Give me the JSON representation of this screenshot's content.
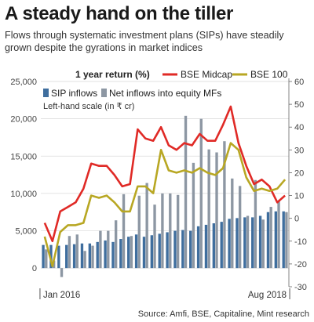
{
  "header": {
    "title": "A steady hand on the tiller",
    "subtitle": "Flows through systematic investment plans (SIPs) have steadily grown despite the gyrations in market indices"
  },
  "footer": {
    "source": "Source: Amfi, BSE, Capitaline, Mint research"
  },
  "chart_data": {
    "type": "bar",
    "title": "",
    "left_axis": {
      "label": "Left-hand scale (in ₹ cr)",
      "ylim": [
        -2500,
        25000
      ],
      "ticks": [
        0,
        5000,
        10000,
        15000,
        20000,
        25000
      ],
      "tick_labels": [
        "0",
        "5,000",
        "10,000",
        "15,000",
        "20,000",
        "25,000"
      ]
    },
    "right_axis": {
      "label": "1 year return (%)",
      "ylim": [
        -30,
        60
      ],
      "ticks": [
        -30,
        -20,
        -10,
        0,
        10,
        20,
        30,
        40,
        50,
        60
      ],
      "tick_labels": [
        "-30",
        "-20",
        "-10",
        "0",
        "10",
        "20",
        "30",
        "40",
        "50",
        "60"
      ]
    },
    "x_labels": {
      "start": "Jan 2016",
      "end": "Aug 2018"
    },
    "months": 32,
    "series": [
      {
        "name": "SIP inflows",
        "type": "bar",
        "axis": "left",
        "color": "#3f6e9e",
        "values": [
          3100,
          3100,
          3000,
          3100,
          3200,
          3300,
          3300,
          3500,
          3700,
          3500,
          3900,
          4200,
          4500,
          4200,
          4400,
          4600,
          4800,
          5000,
          5100,
          5000,
          5600,
          5800,
          6000,
          6200,
          6600,
          6700,
          6800,
          6800,
          7000,
          7500,
          7600,
          7600
        ]
      },
      {
        "name": "Net inflows into equity MFs",
        "type": "bar",
        "axis": "left",
        "color": "#8d97a3",
        "values": [
          2500,
          1000,
          -1200,
          4300,
          4500,
          2300,
          3000,
          5000,
          5000,
          6400,
          9900,
          4300,
          9700,
          11400,
          8500,
          10000,
          10000,
          9800,
          20400,
          14100,
          20000,
          15900,
          15500,
          17000,
          12000,
          11000,
          7000,
          11800,
          6500,
          8200,
          9000,
          7500
        ]
      },
      {
        "name": "BSE Midcap",
        "type": "line",
        "axis": "right",
        "color": "#e02a26",
        "values": [
          -2,
          -10,
          3,
          5,
          7,
          13,
          24,
          23,
          23,
          19,
          14,
          15,
          39,
          35,
          34,
          40,
          32,
          30,
          33,
          32,
          37,
          34,
          34,
          41,
          49,
          33,
          23,
          15,
          17,
          14,
          7,
          10
        ]
      },
      {
        "name": "BSE 100",
        "type": "line",
        "axis": "right",
        "color": "#b8a723",
        "values": [
          -8,
          -21,
          -6,
          -3,
          -3,
          -2,
          10,
          9,
          10,
          7,
          3,
          3,
          14,
          14,
          11,
          30,
          21,
          20,
          21,
          20,
          22,
          20,
          19,
          22,
          33,
          30,
          18,
          12,
          13,
          12,
          13,
          17
        ]
      }
    ],
    "legend_position": "top"
  }
}
